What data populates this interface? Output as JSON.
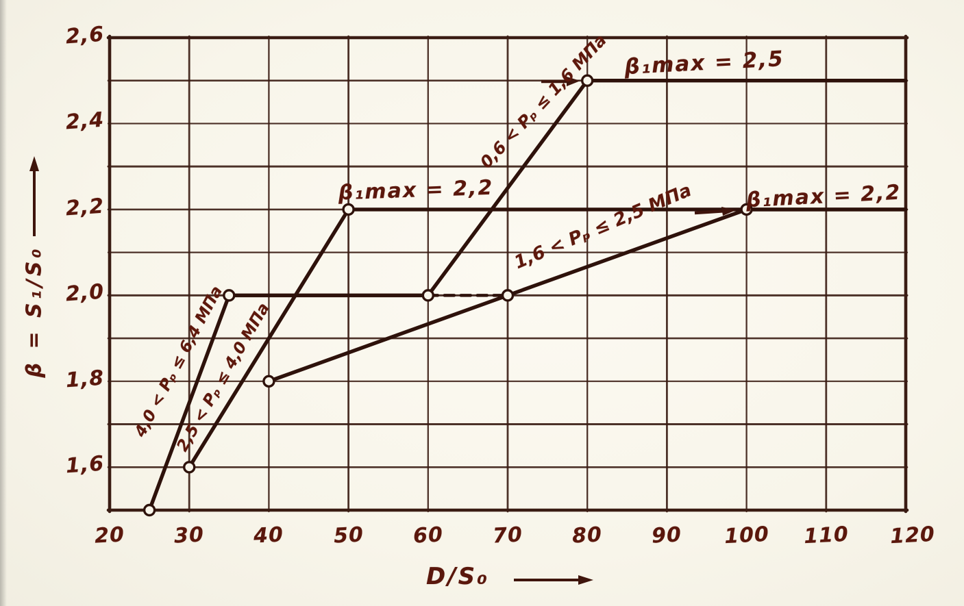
{
  "chart_data": {
    "type": "line",
    "title": "",
    "xlabel": "D/S₀",
    "ylabel": "β = S₁/S₀",
    "xlim": [
      20,
      120
    ],
    "ylim": [
      1.5,
      2.6
    ],
    "grid": {
      "x_step": 10,
      "y_step": 0.1,
      "visible": true
    },
    "legend_position": "labels-along-curves",
    "x_ticks": [
      {
        "v": 20,
        "label": "20"
      },
      {
        "v": 30,
        "label": "30"
      },
      {
        "v": 40,
        "label": "40"
      },
      {
        "v": 50,
        "label": "50"
      },
      {
        "v": 60,
        "label": "60"
      },
      {
        "v": 70,
        "label": "70"
      },
      {
        "v": 80,
        "label": "80"
      },
      {
        "v": 90,
        "label": "90"
      },
      {
        "v": 100,
        "label": "100"
      },
      {
        "v": 110,
        "label": "110"
      },
      {
        "v": 120,
        "label": "120"
      }
    ],
    "y_ticks": [
      {
        "v": 2.6,
        "label": "2,6"
      },
      {
        "v": 2.4,
        "label": "2,4"
      },
      {
        "v": 2.2,
        "label": "2,2"
      },
      {
        "v": 2.0,
        "label": "2,0"
      },
      {
        "v": 1.8,
        "label": "1,8"
      },
      {
        "v": 1.6,
        "label": "1,6"
      }
    ],
    "series": [
      {
        "label": "4,0 < Pₚ ≤ 6,4 МПа",
        "points": [
          [
            25,
            1.5
          ],
          [
            35,
            2.0
          ],
          [
            60,
            2.0
          ]
        ],
        "dash_tail": [
          [
            60,
            2.0
          ],
          [
            70,
            2.0
          ]
        ],
        "markers": [
          [
            25,
            1.5
          ],
          [
            35,
            2.0
          ]
        ],
        "beta1max": 2.0
      },
      {
        "label": "2,5 < Pₚ ≤ 4,0 МПа",
        "points": [
          [
            30,
            1.6
          ],
          [
            50,
            2.2
          ],
          [
            120,
            2.2
          ]
        ],
        "markers": [
          [
            30,
            1.6
          ],
          [
            50,
            2.2
          ]
        ],
        "beta1max": 2.2
      },
      {
        "label": "1,6 < Pₚ ≤ 2,5 МПа",
        "points": [
          [
            40,
            1.8
          ],
          [
            70,
            2.0
          ],
          [
            100,
            2.2
          ],
          [
            120,
            2.2
          ]
        ],
        "markers": [
          [
            40,
            1.8
          ],
          [
            70,
            2.0
          ],
          [
            100,
            2.2
          ]
        ],
        "beta1max": 2.2
      },
      {
        "label": "0,6 < Pₚ ≤ 1,6 МПа",
        "points": [
          [
            60,
            2.0
          ],
          [
            80,
            2.5
          ],
          [
            120,
            2.5
          ]
        ],
        "markers": [
          [
            60,
            2.0
          ],
          [
            80,
            2.5
          ]
        ],
        "beta1max": 2.5
      }
    ],
    "annotations": [
      {
        "text": "β₁max = 2,5",
        "at": [
          90,
          2.55
        ]
      },
      {
        "text": "β₁max = 2,2",
        "at": [
          58,
          2.25
        ]
      },
      {
        "text": "β₁max = 2,2",
        "at": [
          110,
          2.23
        ]
      }
    ],
    "colors": {
      "ink": "#2e120b",
      "grid": "#3a1c13",
      "text": "#5a170c",
      "paper": "#f8f5ea"
    }
  }
}
